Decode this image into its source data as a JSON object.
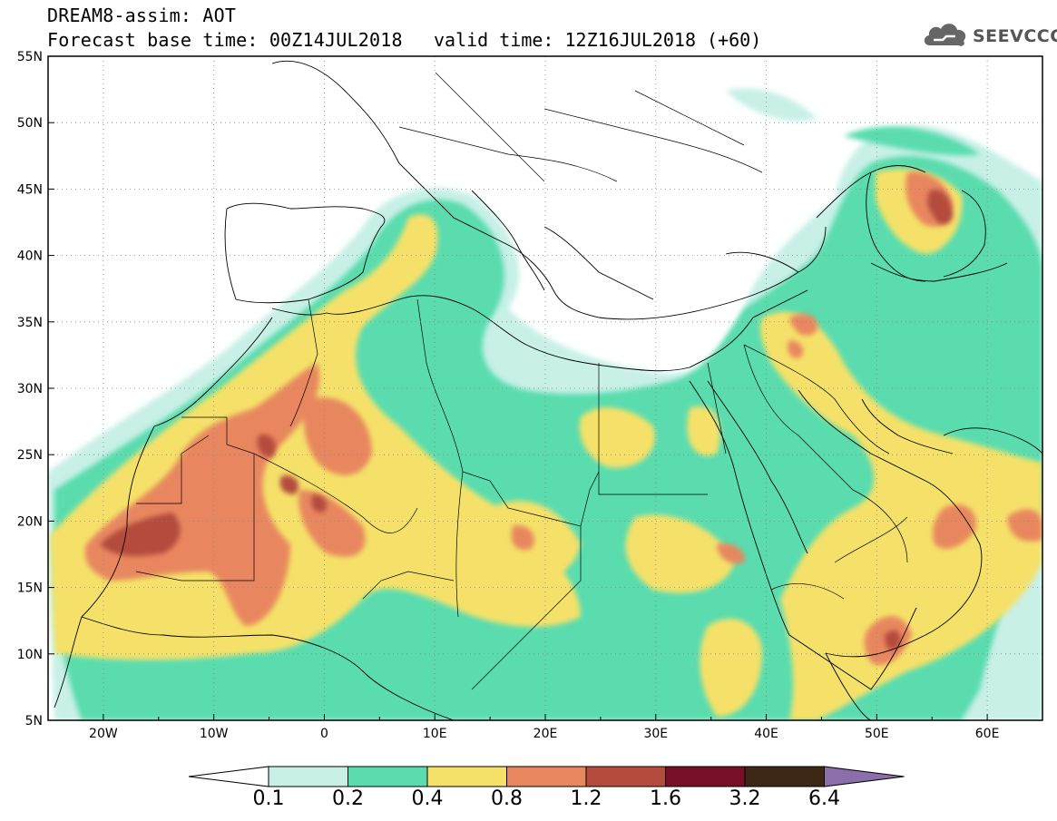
{
  "header": {
    "line1": "DREAM8-assim: AOT",
    "line2": "Forecast base time: 00Z14JUL2018",
    "valid": "valid time: 12Z16JUL2018 (+60)",
    "logo_text": "SEEVCCC"
  },
  "map": {
    "lon_range": [
      -25,
      65
    ],
    "lat_range": [
      5,
      55
    ],
    "lon_ticks": [
      "20W",
      "10W",
      "0",
      "10E",
      "20E",
      "30E",
      "40E",
      "50E",
      "60E"
    ],
    "lat_ticks": [
      "55N",
      "50N",
      "45N",
      "40N",
      "35N",
      "30N",
      "25N",
      "20N",
      "15N",
      "10N",
      "5N"
    ],
    "grid": "dotted"
  },
  "colorbar": {
    "labels": [
      "0.1",
      "0.2",
      "0.4",
      "0.8",
      "1.2",
      "1.6",
      "3.2",
      "6.4"
    ],
    "colors": [
      "#c8f0e6",
      "#5adcaf",
      "#f5e169",
      "#e8875f",
      "#b44b3c",
      "#780f28",
      "#3c2814",
      "#8c6eaa"
    ]
  }
}
